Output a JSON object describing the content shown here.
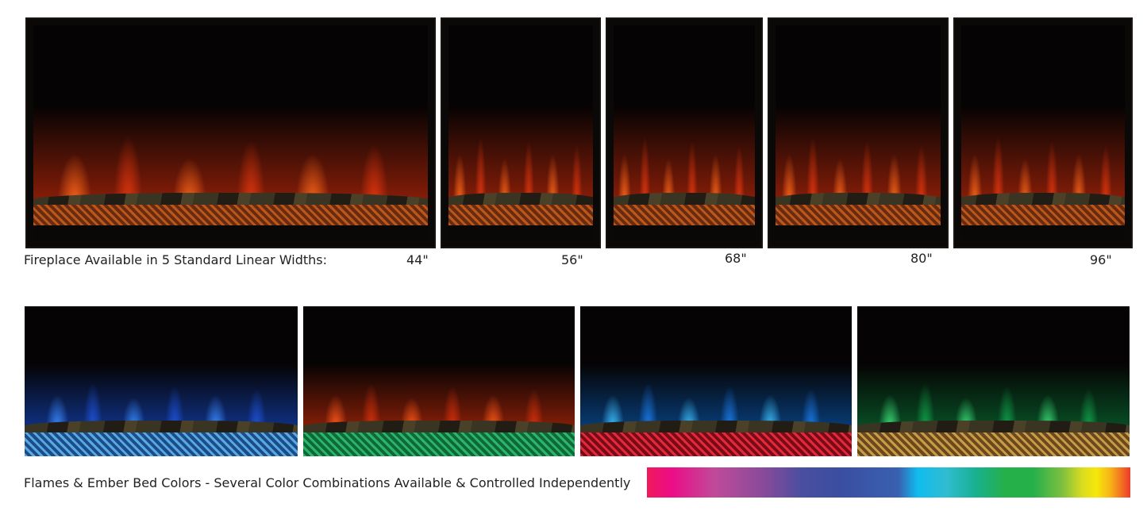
{
  "sizes": {
    "caption": "Fireplace Available in 5 Standard Linear Widths:",
    "widths": [
      "44\"",
      "56\"",
      "68\"",
      "80\"",
      "96\""
    ]
  },
  "colors": {
    "caption": "Flames & Ember Bed Colors - Several Color Combinations Available & Controlled Independently",
    "options": [
      {
        "flame": "blue",
        "ember": "blue"
      },
      {
        "flame": "orange",
        "ember": "green"
      },
      {
        "flame": "cyan",
        "ember": "red"
      },
      {
        "flame": "green",
        "ember": "gold"
      }
    ],
    "spectrum": [
      "#ef1a5a",
      "#ec0c86",
      "#c04a9a",
      "#3a4ea0",
      "#10bcef",
      "#26b04a",
      "#f6e80a",
      "#ee3a2a"
    ]
  }
}
